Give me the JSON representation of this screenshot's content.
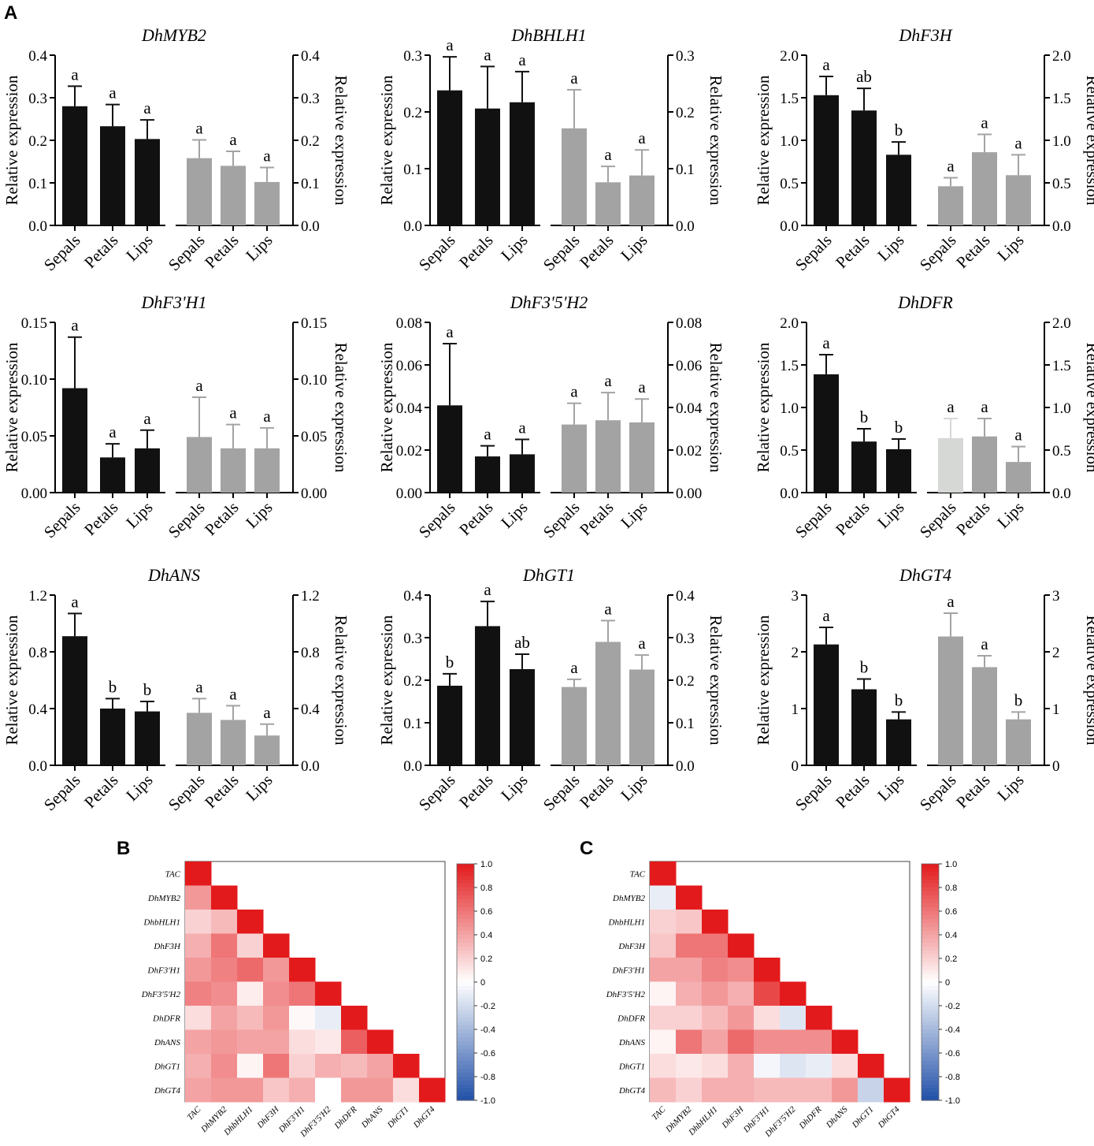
{
  "panel_labels": [
    "A",
    "B",
    "C"
  ],
  "colors": {
    "bar_dark": "#111111",
    "bar_gray": "#a3a3a3",
    "bar_light": "#d6d8d6",
    "heat_pos": "#e31a1c",
    "heat_neg": "#2150a8"
  },
  "chart_data": [
    {
      "type": "bar",
      "title": "DhMYB2",
      "ylabel": "Relative expression",
      "ylim": [
        0,
        0.4
      ],
      "ticks": [
        "0.0",
        "0.1",
        "0.2",
        "0.3",
        "0.4"
      ],
      "categories": [
        "Sepals",
        "Petals",
        "Lips",
        "Sepals",
        "Petals",
        "Lips"
      ],
      "values": [
        0.28,
        0.233,
        0.203,
        0.158,
        0.14,
        0.102
      ],
      "errors": [
        0.047,
        0.051,
        0.045,
        0.043,
        0.034,
        0.034
      ],
      "letters": [
        "a",
        "a",
        "a",
        "a",
        "a",
        "a"
      ],
      "shades": [
        "dark",
        "dark",
        "dark",
        "gray",
        "gray",
        "gray"
      ]
    },
    {
      "type": "bar",
      "title": "DhBHLH1",
      "ylabel": "Relative expression",
      "ylim": [
        0,
        0.3
      ],
      "ticks": [
        "0.0",
        "0.1",
        "0.2",
        "0.3"
      ],
      "categories": [
        "Sepals",
        "Petals",
        "Lips",
        "Sepals",
        "Petals",
        "Lips"
      ],
      "values": [
        0.238,
        0.206,
        0.217,
        0.171,
        0.076,
        0.088
      ],
      "errors": [
        0.059,
        0.074,
        0.054,
        0.068,
        0.028,
        0.045
      ],
      "letters": [
        "a",
        "a",
        "a",
        "a",
        "a",
        "a"
      ],
      "shades": [
        "dark",
        "dark",
        "dark",
        "gray",
        "gray",
        "gray"
      ]
    },
    {
      "type": "bar",
      "title": "DhF3H",
      "ylabel": "Relative expression",
      "ylim": [
        0,
        2.0
      ],
      "ticks": [
        "0.0",
        "0.5",
        "1.0",
        "1.5",
        "2.0"
      ],
      "categories": [
        "Sepals",
        "Petals",
        "Lips",
        "Sepals",
        "Petals",
        "Lips"
      ],
      "values": [
        1.53,
        1.35,
        0.83,
        0.46,
        0.86,
        0.59
      ],
      "errors": [
        0.22,
        0.26,
        0.15,
        0.1,
        0.21,
        0.24
      ],
      "letters": [
        "a",
        "ab",
        "b",
        "a",
        "a",
        "a"
      ],
      "shades": [
        "dark",
        "dark",
        "dark",
        "gray",
        "gray",
        "gray"
      ]
    },
    {
      "type": "bar",
      "title": "DhF3'H1",
      "ylabel": "Relative expression",
      "ylim": [
        0,
        0.15
      ],
      "ticks": [
        "0.00",
        "0.05",
        "0.10",
        "0.15"
      ],
      "categories": [
        "Sepals",
        "Petals",
        "Lips",
        "Sepals",
        "Petals",
        "Lips"
      ],
      "values": [
        0.092,
        0.031,
        0.039,
        0.049,
        0.039,
        0.039
      ],
      "errors": [
        0.045,
        0.012,
        0.016,
        0.035,
        0.021,
        0.018
      ],
      "letters": [
        "a",
        "a",
        "a",
        "a",
        "a",
        "a"
      ],
      "shades": [
        "dark",
        "dark",
        "dark",
        "gray",
        "gray",
        "gray"
      ]
    },
    {
      "type": "bar",
      "title": "DhF3'5'H2",
      "ylabel": "Relative expression",
      "ylim": [
        0,
        0.08
      ],
      "ticks": [
        "0.00",
        "0.02",
        "0.04",
        "0.06",
        "0.08"
      ],
      "categories": [
        "Sepals",
        "Petals",
        "Lips",
        "Sepals",
        "Petals",
        "Lips"
      ],
      "values": [
        0.041,
        0.017,
        0.018,
        0.032,
        0.034,
        0.033
      ],
      "errors": [
        0.029,
        0.005,
        0.007,
        0.01,
        0.013,
        0.011
      ],
      "letters": [
        "a",
        "a",
        "a",
        "a",
        "a",
        "a"
      ],
      "shades": [
        "dark",
        "dark",
        "dark",
        "gray",
        "gray",
        "gray"
      ]
    },
    {
      "type": "bar",
      "title": "DhDFR",
      "ylabel": "Relative expression",
      "ylim": [
        0,
        2.0
      ],
      "ticks": [
        "0.0",
        "0.5",
        "1.0",
        "1.5",
        "2.0"
      ],
      "categories": [
        "Sepals",
        "Petals",
        "Lips",
        "Sepals",
        "Petals",
        "Lips"
      ],
      "values": [
        1.39,
        0.6,
        0.51,
        0.64,
        0.66,
        0.36
      ],
      "errors": [
        0.23,
        0.15,
        0.12,
        0.23,
        0.21,
        0.18
      ],
      "letters": [
        "a",
        "b",
        "b",
        "a",
        "a",
        "a"
      ],
      "shades": [
        "dark",
        "dark",
        "dark",
        "light",
        "gray",
        "gray"
      ]
    },
    {
      "type": "bar",
      "title": "DhANS",
      "ylabel": "Relative expression",
      "ylim": [
        0,
        1.2
      ],
      "ticks": [
        "0.0",
        "0.4",
        "0.8",
        "1.2"
      ],
      "categories": [
        "Sepals",
        "Petals",
        "Lips",
        "Sepals",
        "Petals",
        "Lips"
      ],
      "values": [
        0.91,
        0.4,
        0.38,
        0.37,
        0.32,
        0.21
      ],
      "errors": [
        0.16,
        0.07,
        0.07,
        0.1,
        0.1,
        0.08
      ],
      "letters": [
        "a",
        "b",
        "b",
        "a",
        "a",
        "a"
      ],
      "shades": [
        "dark",
        "dark",
        "dark",
        "gray",
        "gray",
        "gray"
      ]
    },
    {
      "type": "bar",
      "title": "DhGT1",
      "ylabel": "Relative expression",
      "ylim": [
        0,
        0.4
      ],
      "ticks": [
        "0.0",
        "0.1",
        "0.2",
        "0.3",
        "0.4"
      ],
      "categories": [
        "Sepals",
        "Petals",
        "Lips",
        "Sepals",
        "Petals",
        "Lips"
      ],
      "values": [
        0.187,
        0.327,
        0.226,
        0.184,
        0.29,
        0.225
      ],
      "errors": [
        0.028,
        0.058,
        0.035,
        0.018,
        0.05,
        0.034
      ],
      "letters": [
        "b",
        "a",
        "ab",
        "a",
        "a",
        "a"
      ],
      "shades": [
        "dark",
        "dark",
        "dark",
        "gray",
        "gray",
        "gray"
      ]
    },
    {
      "type": "bar",
      "title": "DhGT4",
      "ylabel": "Relative expression",
      "ylim": [
        0,
        3
      ],
      "ticks": [
        "0",
        "1",
        "2",
        "3"
      ],
      "categories": [
        "Sepals",
        "Petals",
        "Lips",
        "Sepals",
        "Petals",
        "Lips"
      ],
      "values": [
        2.13,
        1.34,
        0.81,
        2.27,
        1.73,
        0.81
      ],
      "errors": [
        0.3,
        0.18,
        0.13,
        0.41,
        0.2,
        0.13
      ],
      "letters": [
        "a",
        "b",
        "b",
        "a",
        "a",
        "b"
      ],
      "shades": [
        "dark",
        "dark",
        "dark",
        "gray",
        "gray",
        "gray"
      ]
    },
    {
      "type": "heatmap",
      "panel": "B",
      "labels": [
        "TAC",
        "DhMYB2",
        "DhbHLH1",
        "DhF3H",
        "DhF3'H1",
        "DhF3'5'H2",
        "DhDFR",
        "DhANS",
        "DhGT1",
        "DhGT4"
      ],
      "matrix": [
        [
          1.0
        ],
        [
          0.45,
          1.0
        ],
        [
          0.2,
          0.3,
          1.0
        ],
        [
          0.35,
          0.6,
          0.2,
          1.0
        ],
        [
          0.45,
          0.55,
          0.65,
          0.45,
          1.0
        ],
        [
          0.55,
          0.5,
          0.08,
          0.5,
          0.6,
          1.0
        ],
        [
          0.15,
          0.4,
          0.3,
          0.45,
          0.03,
          -0.1,
          1.0
        ],
        [
          0.4,
          0.45,
          0.4,
          0.4,
          0.15,
          0.1,
          0.7,
          1.0
        ],
        [
          0.35,
          0.5,
          0.05,
          0.6,
          0.2,
          0.35,
          0.3,
          0.4,
          1.0
        ],
        [
          0.4,
          0.45,
          0.45,
          0.25,
          0.35,
          0.0,
          0.45,
          0.45,
          0.15,
          1.0
        ]
      ],
      "colorbar_ticks": [
        "1.0",
        "0.8",
        "0.6",
        "0.4",
        "0.2",
        "0",
        "-0.2",
        "-0.4",
        "-0.6",
        "-0.8",
        "-1.0"
      ]
    },
    {
      "type": "heatmap",
      "panel": "C",
      "labels": [
        "TAC",
        "DhMYB2",
        "DhbHLH1",
        "DhF3H",
        "DhF3'H1",
        "DhF3'5'H2",
        "DhDFR",
        "DhANS",
        "DhGT1",
        "DhGT4"
      ],
      "matrix": [
        [
          1.0
        ],
        [
          -0.1,
          1.0
        ],
        [
          0.2,
          0.25,
          1.0
        ],
        [
          0.25,
          0.6,
          0.6,
          1.0
        ],
        [
          0.4,
          0.4,
          0.55,
          0.5,
          1.0
        ],
        [
          0.05,
          0.35,
          0.45,
          0.35,
          0.8,
          1.0
        ],
        [
          0.2,
          0.2,
          0.3,
          0.45,
          0.15,
          -0.15,
          1.0
        ],
        [
          0.05,
          0.6,
          0.4,
          0.65,
          0.5,
          0.5,
          0.5,
          1.0
        ],
        [
          0.15,
          0.1,
          0.15,
          0.35,
          -0.05,
          -0.15,
          -0.1,
          0.15,
          1.0
        ],
        [
          0.3,
          0.2,
          0.35,
          0.35,
          0.3,
          0.3,
          0.3,
          0.45,
          -0.25,
          1.0
        ]
      ],
      "colorbar_ticks": [
        "1.0",
        "0.8",
        "0.6",
        "0.4",
        "0.2",
        "0",
        "-0.2",
        "-0.4",
        "-0.6",
        "-0.8",
        "-1.0"
      ]
    }
  ]
}
